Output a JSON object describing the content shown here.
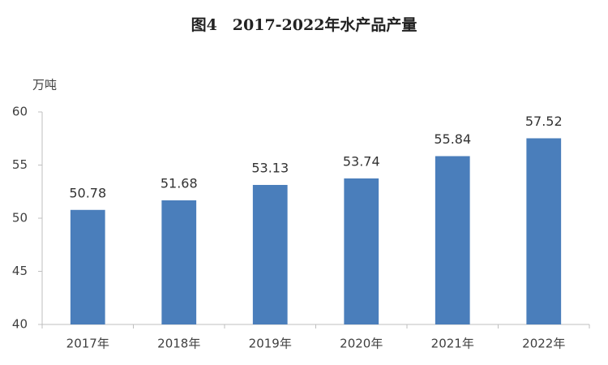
{
  "chart_data": {
    "type": "bar",
    "title": "图4　2017-2022年水产品产量",
    "y_label": "万吨",
    "categories": [
      "2017年",
      "2018年",
      "2019年",
      "2020年",
      "2021年",
      "2022年"
    ],
    "values": [
      50.78,
      51.68,
      53.13,
      53.74,
      55.84,
      57.52
    ],
    "color": "#4a7ebb",
    "ylim": [
      40,
      60
    ],
    "yticks": [
      40,
      45,
      50,
      55,
      60
    ],
    "grid": false
  }
}
